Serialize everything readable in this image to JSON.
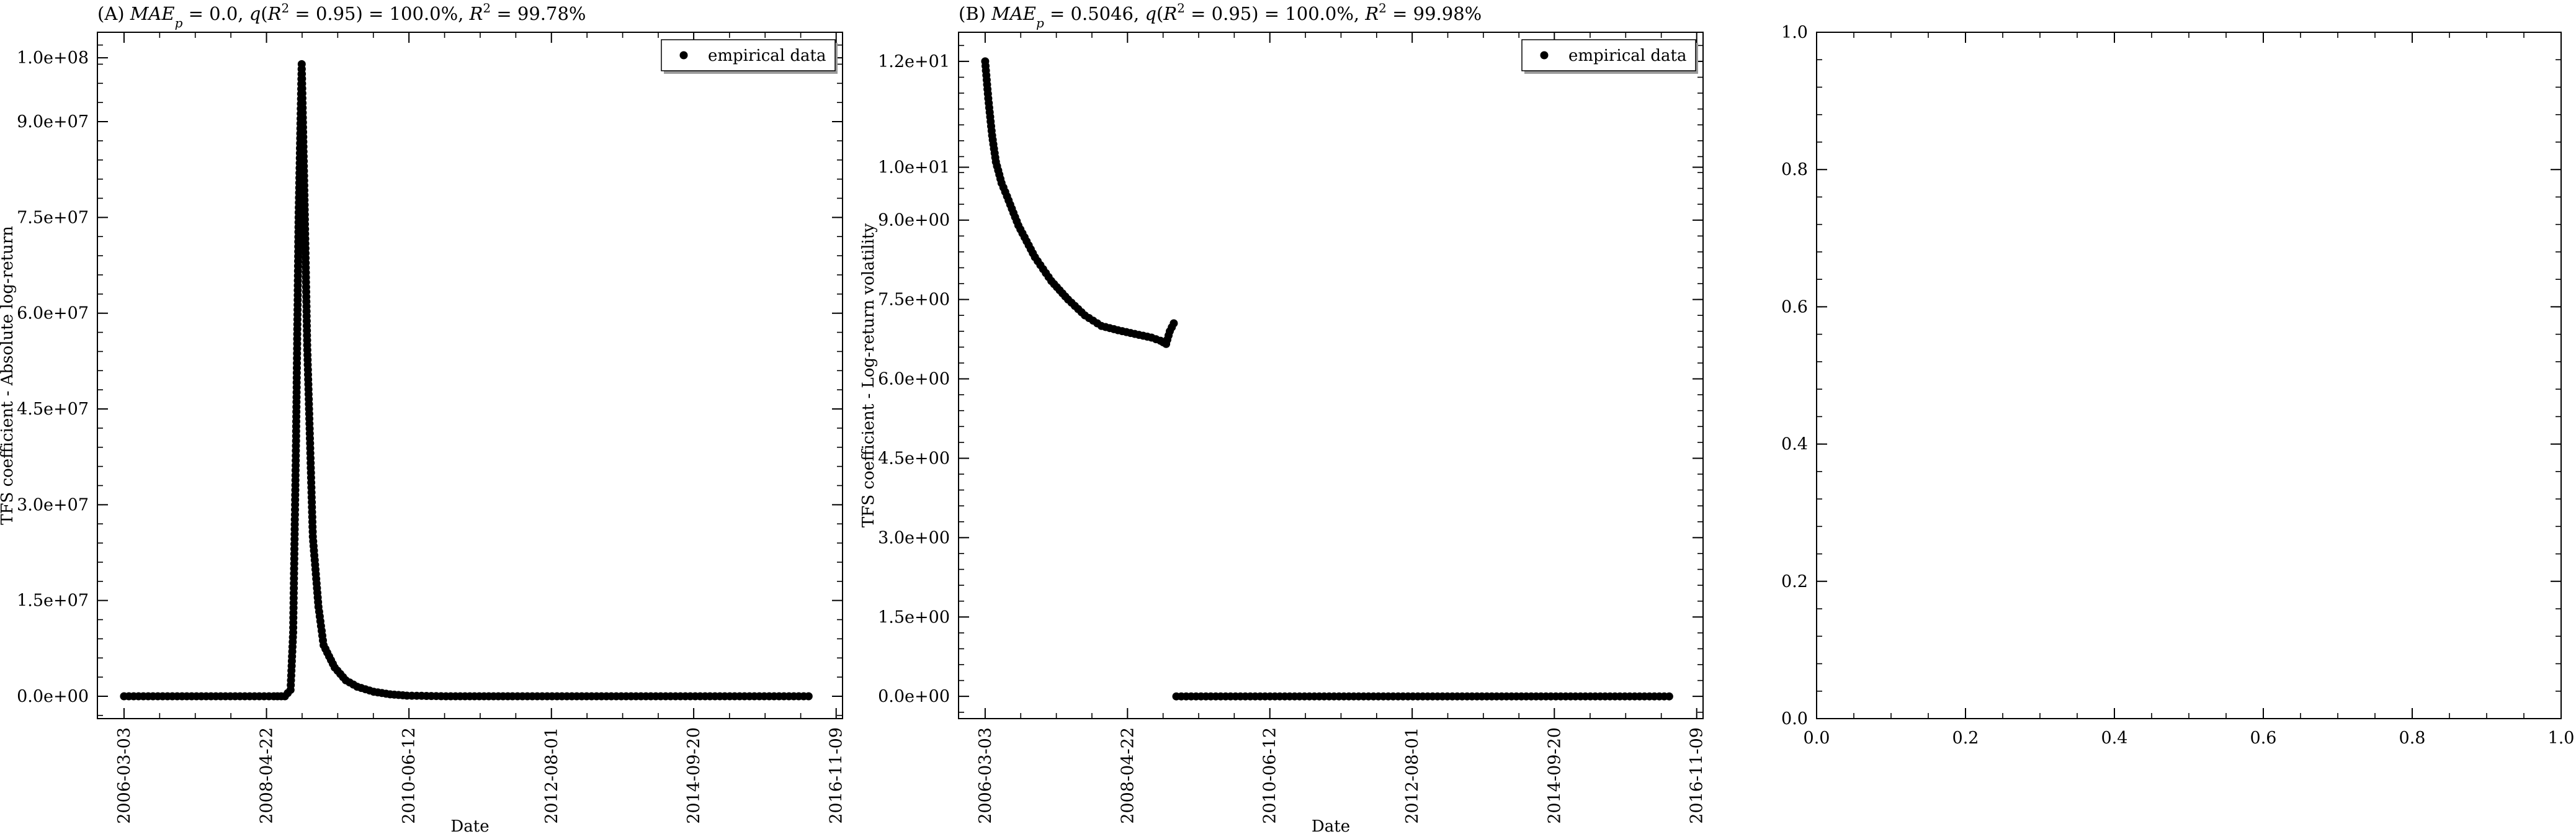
{
  "chart_data": [
    {
      "type": "scatter",
      "panel": "A",
      "title": {
        "prefix": "(A) ",
        "mae_symbol": "MAE",
        "mae_sub": "p",
        "mae_value": " = 0.0, ",
        "q_text": "q",
        "q_arg": "(R",
        "q_arg_sup": "2",
        "q_value": " = 0.95) = 100.0%, ",
        "r2_symbol": "R",
        "r2_sup": "2",
        "r2_value": " = 99.78%"
      },
      "xlabel": "Date",
      "ylabel": "TFS coefficient - Absolute log-return",
      "legend": {
        "label": "empirical data",
        "position": "top-right"
      },
      "x_axis": {
        "type": "date",
        "range": [
          "2005-10-08",
          "2016-12-14"
        ],
        "ticks": [
          "2006-03-03",
          "2008-04-22",
          "2010-06-12",
          "2012-08-01",
          "2014-09-20",
          "2016-11-09"
        ]
      },
      "y_axis": {
        "range": [
          -3500000,
          104000000
        ],
        "ticks": [
          0,
          15000000,
          30000000,
          45000000,
          60000000,
          75000000,
          90000000,
          100000000
        ],
        "tick_labels": [
          "0.0e+00",
          "1.5e+07",
          "3.0e+07",
          "4.5e+07",
          "6.0e+07",
          "7.5e+07",
          "9.0e+07",
          "1.0e+08"
        ]
      },
      "series": [
        {
          "name": "empirical data",
          "marker": "circle",
          "color": "#000000",
          "segments": [
            {
              "x": [
                "2006-03-03",
                "2008-06-01",
                "2008-08-01",
                "2008-09-01",
                "2008-09-15",
                "2008-10-01",
                "2008-10-15",
                "2008-11-01",
                "2008-11-15",
                "2008-12-01",
                "2009-01-01",
                "2009-02-01",
                "2009-03-01",
                "2009-05-01",
                "2009-07-01",
                "2009-09-01",
                "2009-12-01",
                "2010-03-01",
                "2010-06-01",
                "2011-01-01",
                "2012-01-01",
                "2014-01-01",
                "2016-01-01",
                "2016-06-11"
              ],
              "y": [
                0,
                0,
                0,
                1000000,
                10000000,
                40000000,
                75000000,
                99000000,
                80000000,
                55000000,
                25000000,
                14000000,
                8000000,
                4500000,
                2500000,
                1500000,
                700000,
                300000,
                100000,
                0,
                0,
                0,
                0,
                0
              ]
            }
          ]
        }
      ]
    },
    {
      "type": "scatter",
      "panel": "B",
      "title": {
        "prefix": "(B) ",
        "mae_symbol": "MAE",
        "mae_sub": "p",
        "mae_value": " = 0.5046, ",
        "q_text": "q",
        "q_arg": "(R",
        "q_arg_sup": "2",
        "q_value": " = 0.95) = 100.0%, ",
        "r2_symbol": "R",
        "r2_sup": "2",
        "r2_value": " = 99.98%"
      },
      "xlabel": "Date",
      "ylabel": "TFS coefficient - Log-return volatility",
      "legend": {
        "label": "empirical data",
        "position": "top-right"
      },
      "x_axis": {
        "type": "date",
        "range": [
          "2005-10-08",
          "2016-12-14"
        ],
        "ticks": [
          "2006-03-03",
          "2008-04-22",
          "2010-06-12",
          "2012-08-01",
          "2014-09-20",
          "2016-11-09"
        ]
      },
      "y_axis": {
        "range": [
          -0.42,
          12.55
        ],
        "ticks": [
          0,
          1.5,
          3.0,
          4.5,
          6.0,
          7.5,
          9.0,
          10.0,
          12.0
        ],
        "tick_labels": [
          "0.0e+00",
          "1.5e+00",
          "3.0e+00",
          "4.5e+00",
          "6.0e+00",
          "7.5e+00",
          "9.0e+00",
          "1.0e+01",
          "1.2e+01"
        ]
      },
      "series": [
        {
          "name": "empirical data",
          "marker": "circle",
          "color": "#000000",
          "segments": [
            {
              "x": [
                "2006-03-03",
                "2006-03-20",
                "2006-04-10",
                "2006-05-01",
                "2006-06-01",
                "2006-07-01",
                "2006-09-01",
                "2006-12-01",
                "2007-03-01",
                "2007-06-01",
                "2007-09-01",
                "2007-12-01",
                "2008-03-01",
                "2008-06-01",
                "2008-09-01",
                "2008-10-20",
                "2008-11-20",
                "2008-12-10",
                "2009-01-01"
              ],
              "y": [
                12.0,
                11.3,
                10.6,
                10.1,
                9.7,
                9.45,
                8.9,
                8.3,
                7.85,
                7.5,
                7.2,
                7.0,
                6.92,
                6.85,
                6.78,
                6.72,
                6.66,
                6.9,
                7.05
              ]
            },
            {
              "x": [
                "2009-01-15",
                "2016-06-11"
              ],
              "y": [
                0,
                0
              ]
            }
          ]
        }
      ]
    },
    {
      "type": "scatter",
      "panel": "C",
      "x_axis": {
        "range": [
          0,
          1
        ],
        "ticks": [
          0,
          0.2,
          0.4,
          0.6,
          0.8,
          1.0
        ],
        "tick_labels": [
          "0.0",
          "0.2",
          "0.4",
          "0.6",
          "0.8",
          "1.0"
        ]
      },
      "y_axis": {
        "range": [
          0,
          1
        ],
        "ticks": [
          0,
          0.2,
          0.4,
          0.6,
          0.8,
          1.0
        ],
        "tick_labels": [
          "0.0",
          "0.2",
          "0.4",
          "0.6",
          "0.8",
          "1.0"
        ]
      },
      "series": []
    }
  ]
}
